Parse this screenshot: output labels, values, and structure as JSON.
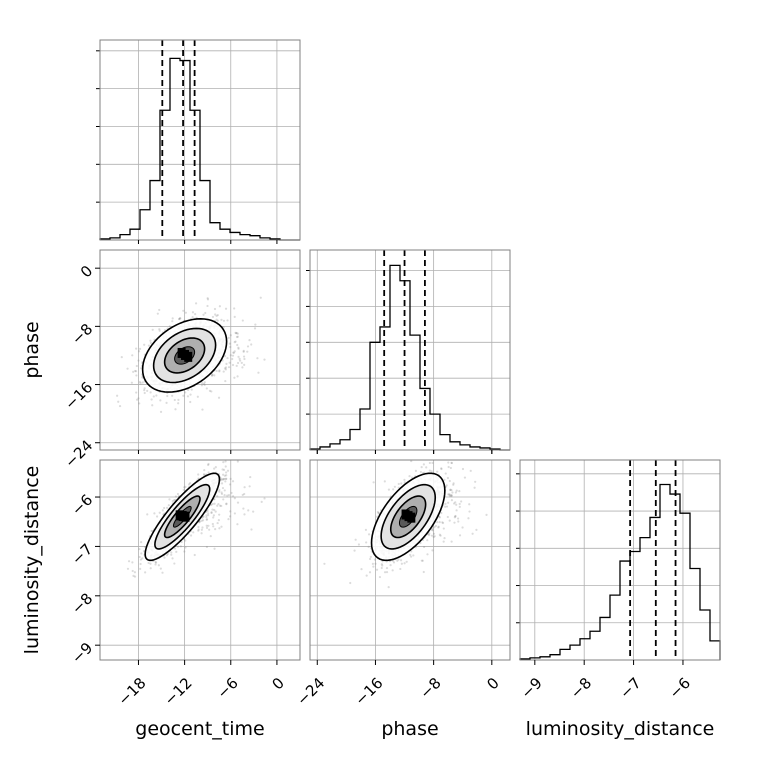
{
  "chart_data": {
    "type": "corner",
    "parameters": [
      "geocent_time",
      "phase",
      "luminosity_distance"
    ],
    "axis_labels": {
      "x": [
        "geocent_time",
        "phase",
        "luminosity_distance"
      ],
      "y": [
        "phase",
        "luminosity_distance"
      ]
    },
    "ranges": {
      "geocent_time": [
        -23,
        3
      ],
      "phase": [
        -25,
        2.5
      ],
      "luminosity_distance": [
        -9.3,
        -5.25
      ]
    },
    "ticks": {
      "geocent_time": {
        "values": [
          -18,
          -12,
          -6,
          0
        ],
        "labels": [
          "−18",
          "−12",
          "−6",
          "0"
        ]
      },
      "phase": {
        "values": [
          -24,
          -16,
          -8,
          0
        ],
        "labels": [
          "−24",
          "−16",
          "−8",
          "0"
        ]
      },
      "luminosity_distance": {
        "values": [
          -9,
          -8,
          -7,
          -6
        ],
        "labels": [
          "−9",
          "−8",
          "−7",
          "−6"
        ]
      }
    },
    "grid": true,
    "histograms": {
      "geocent_time": {
        "edges": [
          -23,
          -21.7,
          -20.4,
          -19.1,
          -17.8,
          -16.5,
          -15.2,
          -13.9,
          -12.6,
          -11.3,
          -10,
          -8.7,
          -7.4,
          -6.1,
          -4.8,
          -3.5,
          -2.2,
          -0.9,
          0.4,
          1.7,
          3
        ],
        "counts": [
          1,
          2,
          5,
          10,
          28,
          55,
          120,
          168,
          166,
          120,
          55,
          16,
          10,
          7,
          5,
          4,
          2,
          1,
          0,
          0
        ],
        "quantiles": [
          -14.9,
          -12.2,
          -10.7
        ],
        "ylim": [
          0,
          185
        ]
      },
      "phase": {
        "edges": [
          -25,
          -23.625,
          -22.25,
          -20.875,
          -19.5,
          -18.125,
          -16.75,
          -15.375,
          -14,
          -12.625,
          -11.25,
          -9.875,
          -8.5,
          -7.125,
          -5.75,
          -4.375,
          -3,
          -1.625,
          -0.25,
          1.125,
          2.5
        ],
        "counts": [
          1,
          3,
          6,
          10,
          20,
          40,
          105,
          120,
          180,
          165,
          112,
          60,
          35,
          15,
          8,
          5,
          3,
          2,
          1,
          0
        ],
        "quantiles": [
          -14.8,
          -12,
          -9.2
        ],
        "ylim": [
          0,
          195
        ]
      },
      "luminosity_distance": {
        "edges": [
          -9.3,
          -9.0975,
          -8.895,
          -8.6925,
          -8.49,
          -8.2875,
          -8.085,
          -7.8825,
          -7.68,
          -7.4775,
          -7.275,
          -7.0725,
          -6.87,
          -6.6675,
          -6.465,
          -6.2625,
          -6.06,
          -5.8575,
          -5.655,
          -5.4525,
          -5.25
        ],
        "counts": [
          1,
          2,
          3,
          5,
          10,
          14,
          20,
          27,
          40,
          61,
          93,
          102,
          115,
          134,
          165,
          156,
          138,
          86,
          47,
          18
        ],
        "quantiles": [
          -7.07,
          -6.55,
          -6.15
        ],
        "ylim": [
          0,
          188
        ]
      }
    },
    "pairs": [
      {
        "x": "geocent_time",
        "y": "phase",
        "center": [
          -12,
          -12
        ],
        "sigma": [
          2.6,
          2.4
        ],
        "rho": 0.38
      },
      {
        "x": "geocent_time",
        "y": "luminosity_distance",
        "center": [
          -12.3,
          -6.4
        ],
        "sigma": [
          2.3,
          0.42
        ],
        "rho": 0.86
      },
      {
        "x": "phase",
        "y": "luminosity_distance",
        "center": [
          -11.5,
          -6.4
        ],
        "sigma": [
          2.4,
          0.42
        ],
        "rho": 0.6
      }
    ],
    "contour_levels": [
      "0.5σ",
      "1σ",
      "1.5σ",
      "2σ"
    ],
    "colors": {
      "hist": "#000000",
      "points": "#808080",
      "grid": "#b0b0b0",
      "frame": "#808080"
    }
  }
}
